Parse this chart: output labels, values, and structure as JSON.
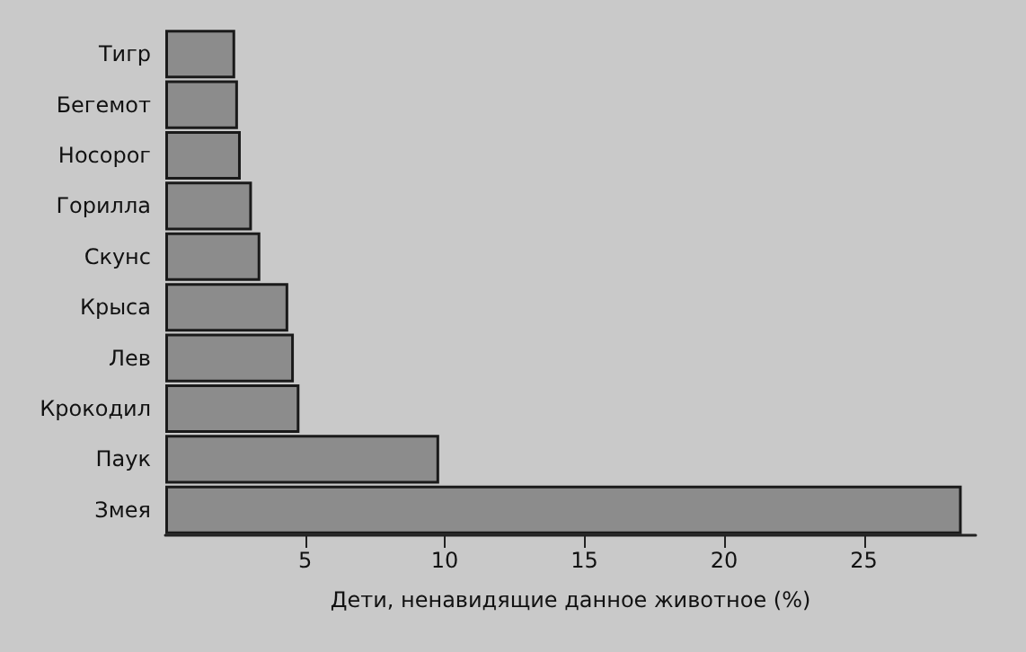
{
  "chart_data": {
    "type": "bar",
    "orientation": "horizontal",
    "xlabel": "Дети, ненавидящие данное животное (%)",
    "categories": [
      "Тигр",
      "Бегемот",
      "Носорог",
      "Горилла",
      "Скунс",
      "Крыса",
      "Лев",
      "Крокодил",
      "Паук",
      "Змея"
    ],
    "values": [
      2.5,
      2.6,
      2.7,
      3.1,
      3.4,
      4.4,
      4.6,
      4.8,
      9.8,
      28.5
    ],
    "color": "#8c8c8c",
    "xlim": [
      0,
      29
    ],
    "xticks": [
      5,
      10,
      15,
      20,
      25
    ],
    "grid": false
  }
}
